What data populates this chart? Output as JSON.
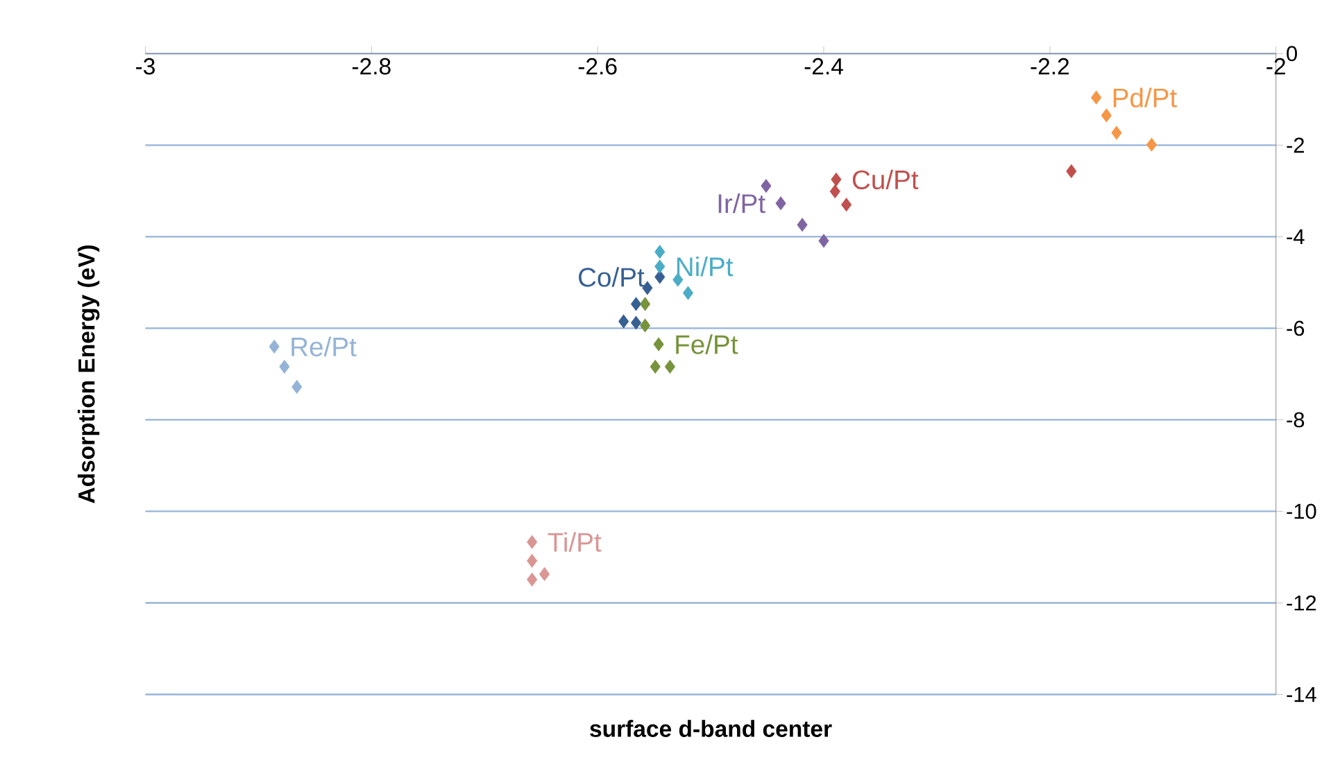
{
  "chart_data": {
    "type": "scatter",
    "xlabel": "surface d-band center",
    "ylabel": "Adsorption Energy (eV)",
    "xlim": [
      -3,
      -2
    ],
    "ylim": [
      -14,
      0
    ],
    "xticks": [
      -3,
      -2.8,
      -2.6,
      -2.4,
      -2.2,
      -2
    ],
    "yticks": [
      0,
      -2,
      -4,
      -6,
      -8,
      -10,
      -12,
      -14
    ],
    "grid": "y",
    "marker": "diamond",
    "legend": false,
    "series": [
      {
        "name": "Re/Pt",
        "color": "#95b3d7",
        "x": [
          -2.886,
          -2.877,
          -2.866
        ],
        "values": [
          -6.4,
          -6.84,
          -7.28
        ]
      },
      {
        "name": "Ti/Pt",
        "color": "#d99694",
        "x": [
          -2.658,
          -2.658,
          -2.658,
          -2.647
        ],
        "values": [
          -10.67,
          -11.08,
          -11.49,
          -11.37
        ]
      },
      {
        "name": "Co/Pt",
        "color": "#376092",
        "x": [
          -2.577,
          -2.566,
          -2.566,
          -2.556,
          -2.545
        ],
        "values": [
          -5.85,
          -5.88,
          -5.47,
          -5.12,
          -4.88
        ]
      },
      {
        "name": "Ni/Pt",
        "color": "#4bacc6",
        "x": [
          -2.545,
          -2.545,
          -2.529,
          -2.52
        ],
        "values": [
          -4.33,
          -4.65,
          -4.94,
          -5.23
        ]
      },
      {
        "name": "Fe/Pt",
        "color": "#77933c",
        "x": [
          -2.558,
          -2.558,
          -2.546,
          -2.549,
          -2.536
        ],
        "values": [
          -5.47,
          -5.94,
          -6.35,
          -6.84,
          -6.84
        ]
      },
      {
        "name": "Ir/Pt",
        "color": "#8064a2",
        "x": [
          -2.451,
          -2.438,
          -2.419,
          -2.4
        ],
        "values": [
          -2.89,
          -3.27,
          -3.74,
          -4.09
        ]
      },
      {
        "name": "Cu/Pt",
        "color": "#c0504d",
        "x": [
          -2.389,
          -2.39,
          -2.38,
          -2.181
        ],
        "values": [
          -2.75,
          -3.01,
          -3.3,
          -2.57
        ]
      },
      {
        "name": "Pd/Pt",
        "color": "#f79646",
        "x": [
          -2.159,
          -2.15,
          -2.141,
          -2.11
        ],
        "values": [
          -0.96,
          -1.35,
          -1.73,
          -1.99
        ]
      }
    ]
  }
}
